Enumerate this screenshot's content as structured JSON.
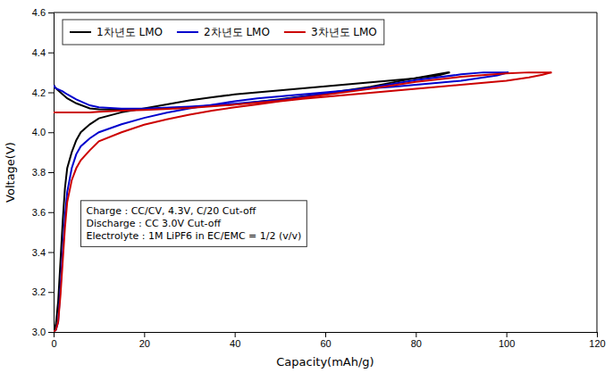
{
  "chart_data": {
    "type": "line",
    "xlabel": "Capacity(mAh/g)",
    "ylabel": "Voltage(V)",
    "xlim": [
      0,
      120
    ],
    "ylim": [
      3.0,
      4.6
    ],
    "xticks": [
      0,
      20,
      40,
      60,
      80,
      100,
      120
    ],
    "yticks": [
      {
        "value": 3.0,
        "label": "3.0"
      },
      3.2,
      3.4,
      3.6,
      3.8,
      {
        "value": 4.0,
        "label": "4.0"
      },
      4.2,
      4.4,
      4.6
    ],
    "legend": "upper left",
    "grid": false,
    "annotation": "Charge : CC/CV, 4.3V, C/20 Cut-off\nDischarge : CC 3.0V Cut-off\nElectrolyte : 1M LiPF6 in EC/EMC = 1/2 (v/v)",
    "series": [
      {
        "name": "1차년도 LMO",
        "color": "#000000",
        "x": [
          0,
          0.3,
          0.5,
          1,
          2,
          3,
          5,
          8,
          10,
          15,
          20,
          30,
          40,
          50,
          60,
          70,
          80,
          85,
          87,
          87.5
        ],
        "values": [
          4.24,
          4.225,
          4.22,
          4.21,
          4.19,
          4.17,
          4.145,
          4.12,
          4.115,
          4.113,
          4.115,
          4.125,
          4.14,
          4.165,
          4.195,
          4.228,
          4.272,
          4.292,
          4.3,
          4.3
        ]
      },
      {
        "color": "#000000",
        "x": [
          87.5,
          85,
          80,
          75,
          70,
          65,
          60,
          55,
          50,
          45,
          40,
          35,
          30,
          25,
          20,
          15,
          10,
          8,
          6,
          5,
          4,
          3,
          2.5,
          2,
          1.5,
          1,
          0.5,
          0.2,
          0
        ],
        "values": [
          4.3,
          4.285,
          4.27,
          4.26,
          4.25,
          4.24,
          4.23,
          4.22,
          4.21,
          4.2,
          4.19,
          4.175,
          4.16,
          4.14,
          4.12,
          4.1,
          4.07,
          4.04,
          4.0,
          3.96,
          3.9,
          3.82,
          3.72,
          3.55,
          3.35,
          3.15,
          3.04,
          3.01,
          3.0
        ]
      },
      {
        "name": "2차년도 LMO",
        "color": "#0000CD",
        "x": [
          0,
          0.3,
          0.5,
          1,
          2,
          3,
          5,
          8,
          10,
          15,
          20,
          30,
          40,
          50,
          60,
          70,
          80,
          90,
          95,
          99,
          100,
          100.5
        ],
        "values": [
          4.235,
          4.225,
          4.22,
          4.215,
          4.205,
          4.19,
          4.165,
          4.135,
          4.125,
          4.118,
          4.118,
          4.128,
          4.143,
          4.163,
          4.193,
          4.223,
          4.261,
          4.29,
          4.3,
          4.3,
          4.3,
          4.3
        ]
      },
      {
        "color": "#0000CD",
        "x": [
          100.5,
          98,
          95,
          90,
          85,
          80,
          75,
          70,
          65,
          60,
          55,
          50,
          45,
          40,
          35,
          30,
          25,
          20,
          15,
          10,
          8,
          6,
          5,
          4,
          3,
          2.5,
          2,
          1.5,
          1,
          0.5,
          0.2,
          0
        ],
        "values": [
          4.3,
          4.285,
          4.275,
          4.258,
          4.248,
          4.238,
          4.228,
          4.22,
          4.21,
          4.2,
          4.19,
          4.18,
          4.17,
          4.155,
          4.138,
          4.12,
          4.098,
          4.072,
          4.04,
          4.0,
          3.97,
          3.93,
          3.89,
          3.82,
          3.7,
          3.58,
          3.4,
          3.22,
          3.05,
          3.01,
          3.005,
          3.0
        ]
      },
      {
        "name": "3차년도 LMO",
        "color": "#CC0000",
        "x": [
          0,
          0.3,
          0.5,
          1,
          2,
          3,
          5,
          8,
          10,
          15,
          20,
          30,
          40,
          50,
          60,
          70,
          80,
          90,
          100,
          105,
          108,
          109,
          110
        ],
        "values": [
          4.1,
          4.1,
          4.1,
          4.1,
          4.1,
          4.1,
          4.1,
          4.1,
          4.103,
          4.108,
          4.112,
          4.122,
          4.138,
          4.158,
          4.188,
          4.218,
          4.252,
          4.278,
          4.295,
          4.3,
          4.3,
          4.3,
          4.3
        ]
      },
      {
        "color": "#CC0000",
        "x": [
          110,
          108,
          105,
          100,
          95,
          90,
          85,
          80,
          75,
          70,
          65,
          60,
          55,
          50,
          45,
          40,
          35,
          30,
          25,
          20,
          15,
          10,
          8,
          6,
          5,
          4,
          3,
          2.5,
          2,
          1.5,
          1,
          0.5,
          0.2,
          0
        ],
        "values": [
          4.3,
          4.288,
          4.275,
          4.258,
          4.248,
          4.238,
          4.228,
          4.218,
          4.208,
          4.198,
          4.188,
          4.178,
          4.168,
          4.155,
          4.14,
          4.125,
          4.108,
          4.088,
          4.065,
          4.038,
          4.0,
          3.955,
          3.91,
          3.86,
          3.82,
          3.76,
          3.65,
          3.52,
          3.35,
          3.18,
          3.05,
          3.01,
          3.005,
          3.0
        ]
      }
    ]
  }
}
